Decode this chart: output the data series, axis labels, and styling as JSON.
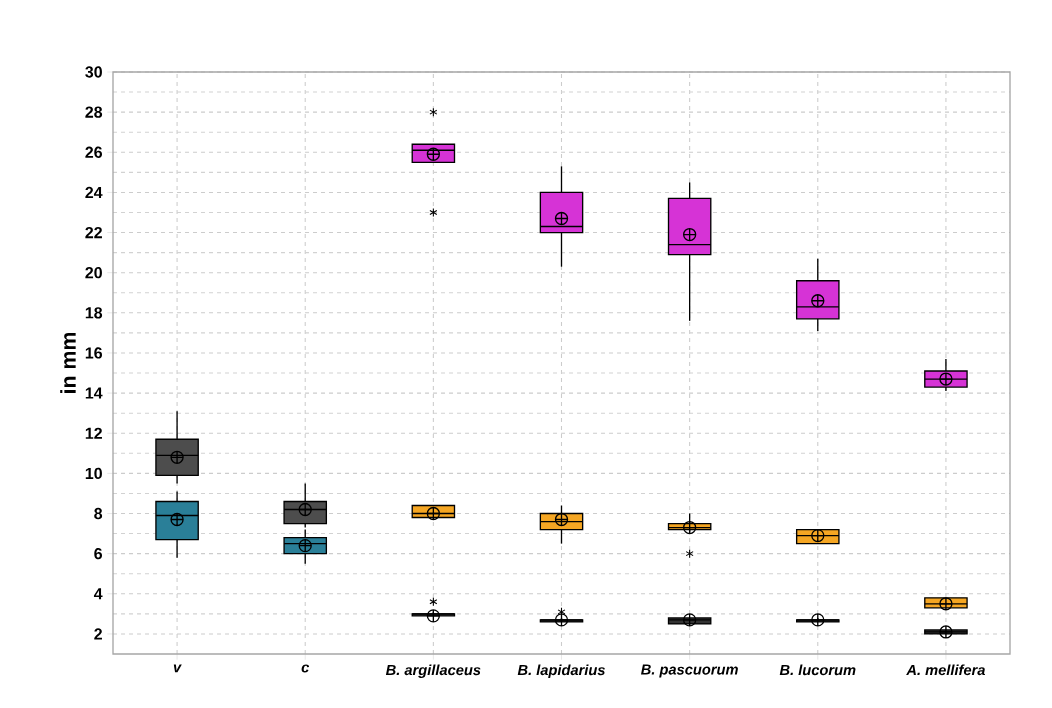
{
  "chart_data": {
    "type": "box",
    "ylabel": "in mm",
    "categories": [
      "v",
      "c",
      "B. argillaceus",
      "B. lapidarius",
      "B. pascuorum",
      "B. lucorum",
      "A. mellifera"
    ],
    "ylim": [
      1,
      30
    ],
    "yticks": [
      2,
      4,
      6,
      8,
      10,
      12,
      14,
      16,
      18,
      20,
      22,
      24,
      26,
      28,
      30
    ],
    "grid": true,
    "series": [
      {
        "color": "#4d4d4d",
        "boxes": [
          {
            "low": 9.5,
            "q1": 9.9,
            "median": 10.9,
            "q3": 11.7,
            "high": 13.1,
            "mean": 10.8
          },
          {
            "low": 7.3,
            "q1": 7.5,
            "median": 8.2,
            "q3": 8.6,
            "high": 9.5,
            "mean": 8.2
          },
          null,
          null,
          null,
          null,
          null
        ]
      },
      {
        "color": "#2a7f98",
        "boxes": [
          {
            "low": 5.8,
            "q1": 6.7,
            "median": 7.9,
            "q3": 8.6,
            "high": 9.1,
            "mean": 7.7
          },
          {
            "low": 5.5,
            "q1": 6.0,
            "median": 6.5,
            "q3": 6.8,
            "high": 7.2,
            "mean": 6.4
          },
          null,
          null,
          null,
          null,
          null
        ]
      },
      {
        "color": "#d633d6",
        "boxes": [
          null,
          null,
          {
            "low": 25.5,
            "q1": 25.5,
            "median": 26.1,
            "q3": 26.4,
            "high": 26.4,
            "mean": 25.9,
            "outliers": [
              28,
              23
            ]
          },
          {
            "low": 20.3,
            "q1": 22.0,
            "median": 22.3,
            "q3": 24.0,
            "high": 25.3,
            "mean": 22.7
          },
          {
            "low": 17.6,
            "q1": 20.9,
            "median": 21.4,
            "q3": 23.7,
            "high": 24.5,
            "mean": 21.9
          },
          {
            "low": 17.1,
            "q1": 17.7,
            "median": 18.3,
            "q3": 19.6,
            "high": 20.7,
            "mean": 18.6
          },
          {
            "low": 14.1,
            "q1": 14.3,
            "median": 14.7,
            "q3": 15.1,
            "high": 15.7,
            "mean": 14.7
          }
        ]
      },
      {
        "color": "#f5a623",
        "boxes": [
          null,
          null,
          {
            "low": 7.8,
            "q1": 7.8,
            "median": 8.0,
            "q3": 8.4,
            "high": 8.4,
            "mean": 8.0
          },
          {
            "low": 6.5,
            "q1": 7.2,
            "median": 7.6,
            "q3": 8.0,
            "high": 8.4,
            "mean": 7.7
          },
          {
            "low": 7.1,
            "q1": 7.2,
            "median": 7.3,
            "q3": 7.5,
            "high": 8.0,
            "mean": 7.3,
            "outliers": [
              6.0
            ]
          },
          {
            "low": 6.5,
            "q1": 6.5,
            "median": 6.9,
            "q3": 7.2,
            "high": 7.2,
            "mean": 6.9
          },
          {
            "low": 3.3,
            "q1": 3.3,
            "median": 3.5,
            "q3": 3.8,
            "high": 3.8,
            "mean": 3.5
          }
        ]
      },
      {
        "color": "#333333",
        "boxes": [
          null,
          null,
          {
            "low": 2.9,
            "q1": 2.9,
            "median": 3.0,
            "q3": 3.0,
            "high": 3.1,
            "mean": 2.9,
            "outliers": [
              3.6
            ]
          },
          {
            "low": 2.6,
            "q1": 2.6,
            "median": 2.7,
            "q3": 2.7,
            "high": 2.8,
            "mean": 2.7,
            "outliers": [
              3.1
            ]
          },
          {
            "low": 2.5,
            "q1": 2.5,
            "median": 2.7,
            "q3": 2.8,
            "high": 2.8,
            "mean": 2.7
          },
          {
            "low": 2.6,
            "q1": 2.6,
            "median": 2.7,
            "q3": 2.7,
            "high": 2.8,
            "mean": 2.7
          },
          {
            "low": 2.0,
            "q1": 2.0,
            "median": 2.1,
            "q3": 2.2,
            "high": 2.2,
            "mean": 2.1
          }
        ]
      }
    ]
  }
}
